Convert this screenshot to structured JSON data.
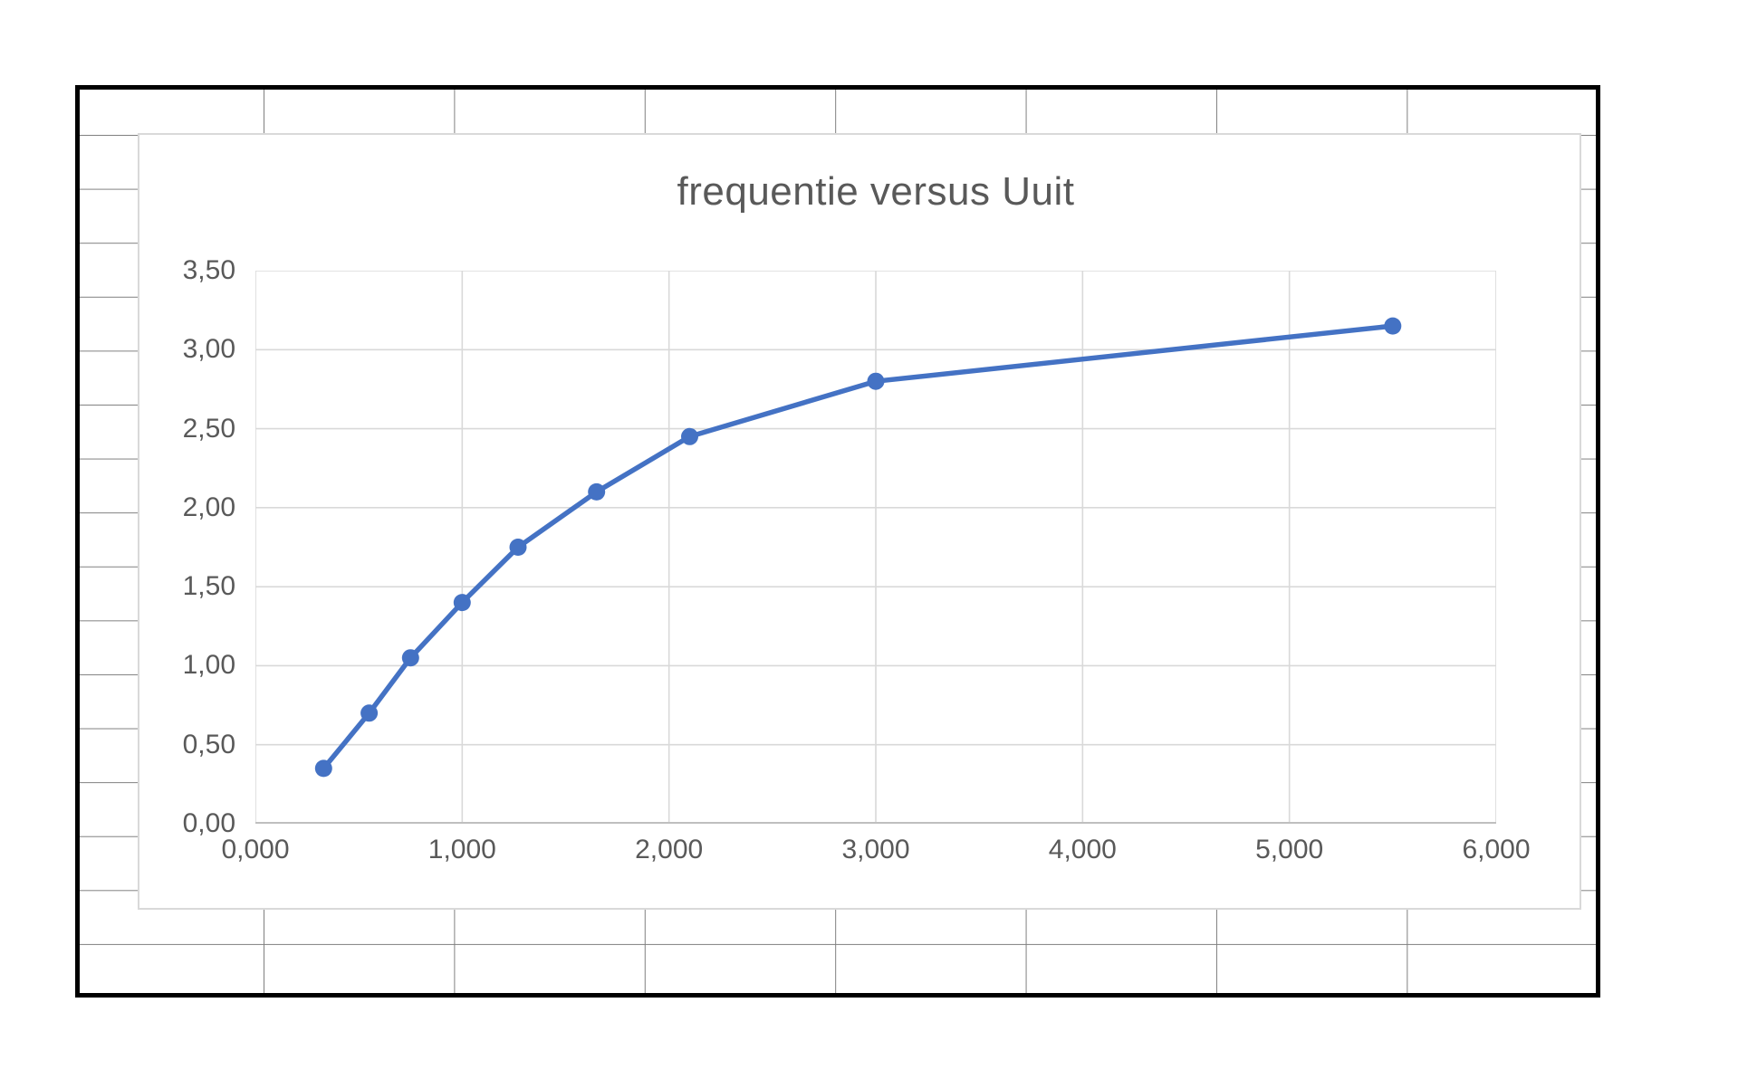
{
  "chart_data": {
    "type": "line",
    "title": "frequentie versus Uuit",
    "x": [
      0.33,
      0.55,
      0.75,
      1.0,
      1.27,
      1.65,
      2.1,
      3.0,
      5.5
    ],
    "series": [
      {
        "name": "frequentie versus Uuit",
        "values": [
          0.35,
          0.7,
          1.05,
          1.4,
          1.75,
          2.1,
          2.45,
          2.8,
          3.15
        ]
      }
    ],
    "xlabel": "",
    "ylabel": "",
    "xlim": [
      0,
      6
    ],
    "ylim": [
      0,
      3.5
    ],
    "x_ticks": {
      "values": [
        0,
        1,
        2,
        3,
        4,
        5,
        6
      ],
      "labels": [
        "0,000",
        "1,000",
        "2,000",
        "3,000",
        "4,000",
        "5,000",
        "6,000"
      ]
    },
    "y_ticks": {
      "values": [
        0,
        0.5,
        1,
        1.5,
        2,
        2.5,
        3,
        3.5
      ],
      "labels": [
        "0,00",
        "0,50",
        "1,00",
        "1,50",
        "2,00",
        "2,50",
        "3,00",
        "3,50"
      ]
    },
    "grid": true,
    "legend_position": "none",
    "marker": "circle"
  },
  "colors": {
    "series_line": "#4472C4",
    "marker_fill": "#4472C4",
    "gridline": "#d9d9d9",
    "axis_line": "#bfbfbf",
    "tick_text": "#595959",
    "title_text": "#595959",
    "cell_gridline": "#808080",
    "sheet_border": "#000000",
    "chart_border": "#d9d9d9",
    "background": "#ffffff"
  }
}
